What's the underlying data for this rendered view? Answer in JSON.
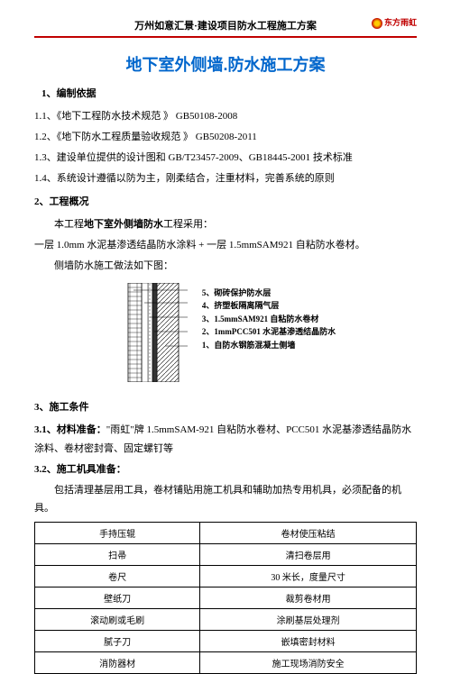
{
  "header": {
    "title": "万州如意汇景·建设项目防水工程施工方案",
    "logo_text": "东方雨虹"
  },
  "main_title": "地下室外侧墙.防水施工方案",
  "s1": {
    "heading": "1、编制依据",
    "item1": "1.1、《地下工程防水技术规范 》  GB50108-2008",
    "item2": "1.2、《地下防水工程质量验收规范 》  GB50208-2011",
    "item3": "1.3、建设单位提供的设计图和 GB/T23457-2009、GB18445-2001 技术标准",
    "item4": "1.4、系统设计遵循以防为主，刚柔结合，注重材料，完善系统的原则"
  },
  "s2": {
    "heading": "2、工程概况",
    "line1": "本工程地下室外侧墙防水工程采用：",
    "line2": "一层 1.0mm 水泥基渗透结晶防水涂料  + 一层 1.5mmSAM921 自粘防水卷材。",
    "line3": "侧墙防水施工做法如下图："
  },
  "legend": {
    "l5": "5、砌砖保护防水层",
    "l4": "4、挤塑板隔离隔气层",
    "l3": "3、1.5mmSAM921 自粘防水卷材",
    "l2": "2、1mmPCC501 水泥基渗透结晶防水",
    "l1": "1、自防水钢筋混凝土侧墙"
  },
  "s3": {
    "heading": "3、施工条件",
    "sub1_label": "3.1、材料准备：",
    "sub1_text": "\"雨虹\"牌 1.5mmSAM-921 自粘防水卷材、PCC501 水泥基渗透结晶防水涂料、卷材密封膏、固定螺钉等",
    "sub2_label": "3.2、施工机具准备：",
    "sub2_text": "包括清理基层用工具，卷材铺贴用施工机具和辅助加热专用机具，必须配备的机具。"
  },
  "table": {
    "rows": [
      [
        "手持压辊",
        "卷材使压粘结"
      ],
      [
        "扫帚",
        "清扫卷层用"
      ],
      [
        "卷尺",
        "30 米长，度量尺寸"
      ],
      [
        "壁纸刀",
        "裁剪卷材用"
      ],
      [
        "滚动刷或毛刷",
        "涂刷基层处理剂"
      ],
      [
        "腻子刀",
        "嵌填密封材料"
      ],
      [
        "消防器材",
        "施工现场消防安全"
      ]
    ]
  },
  "colors": {
    "accent_red": "#c00000",
    "title_blue": "#0066cc"
  }
}
